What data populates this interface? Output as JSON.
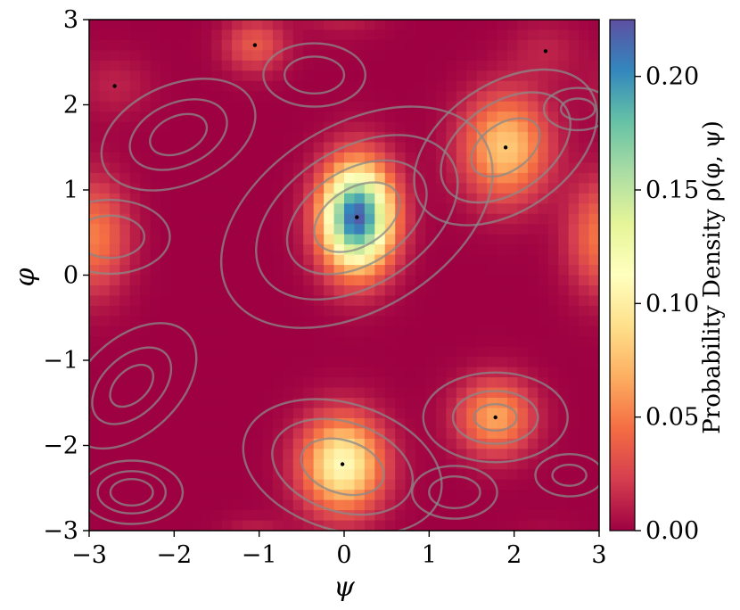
{
  "chart_data": {
    "type": "heatmap",
    "title": "",
    "xlabel": "ψ",
    "ylabel": "φ",
    "xlim": [
      -3,
      3
    ],
    "ylim": [
      -3,
      3
    ],
    "x_ticks": [
      -3,
      -2,
      -1,
      0,
      1,
      2,
      3
    ],
    "y_ticks": [
      -3,
      -2,
      -1,
      0,
      1,
      2,
      3
    ],
    "x_tick_labels": [
      "−3",
      "−2",
      "−1",
      "0",
      "1",
      "2",
      "3"
    ],
    "y_tick_labels": [
      "−3",
      "−2",
      "−1",
      "0",
      "1",
      "2",
      "3"
    ],
    "grid": false,
    "colormap": "Spectral",
    "colorbar": {
      "label": "Probability Density ρ(φ, ψ)",
      "range": [
        0,
        0.225
      ],
      "ticks": [
        0.0,
        0.05,
        0.1,
        0.15,
        0.2
      ],
      "tick_labels": [
        "0.00",
        "0.05",
        "0.10",
        "0.15",
        "0.20"
      ]
    },
    "grid_resolution": 50,
    "peaks": [
      {
        "psi": 0.15,
        "phi": 0.68,
        "density": 0.22
      },
      {
        "psi": -0.02,
        "phi": -2.22,
        "density": 0.11
      },
      {
        "psi": 1.9,
        "phi": 1.5,
        "density": 0.08
      },
      {
        "psi": 1.78,
        "phi": -1.67,
        "density": 0.065
      },
      {
        "psi": -2.95,
        "phi": 0.45,
        "density": 0.05
      },
      {
        "psi": -1.05,
        "phi": 2.7,
        "density": 0.035
      },
      {
        "psi": -2.7,
        "phi": 2.22,
        "density": 0.012
      },
      {
        "psi": 2.37,
        "phi": 2.63,
        "density": 0.012
      }
    ],
    "marked_points": [
      {
        "psi": 0.15,
        "phi": 0.68
      },
      {
        "psi": -0.02,
        "phi": -2.22
      },
      {
        "psi": 1.9,
        "phi": 1.5
      },
      {
        "psi": 1.78,
        "phi": -1.67
      },
      {
        "psi": -1.05,
        "phi": 2.7
      },
      {
        "psi": -2.7,
        "phi": 2.22
      },
      {
        "psi": 2.37,
        "phi": 2.63
      }
    ],
    "contour_color": "#8a8a8a"
  }
}
